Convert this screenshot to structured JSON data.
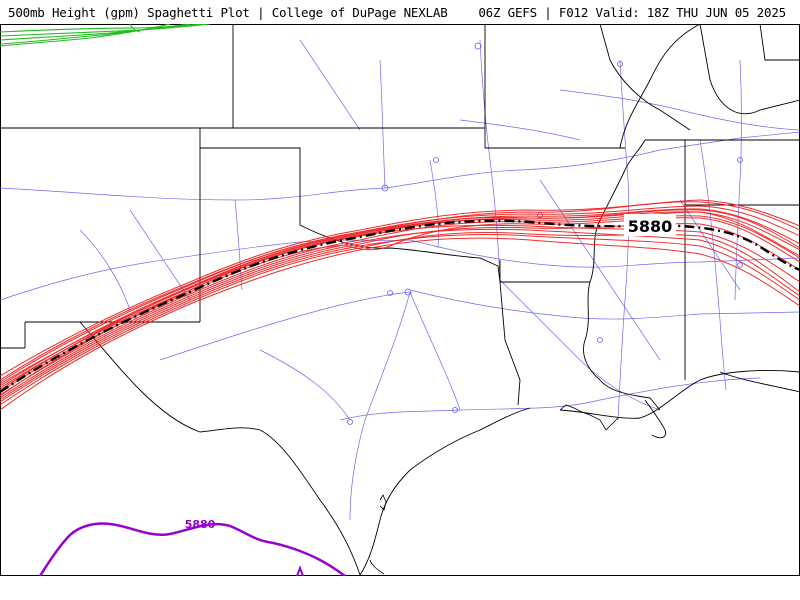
{
  "header": {
    "title": "500mb Height (gpm) Spaghetti Plot | College of DuPage NEXLAB",
    "run_info": "06Z GEFS | F012 Valid: 18Z THU JUN 05 2025"
  },
  "map": {
    "contour_labels": {
      "mean": "5880",
      "south": "5880"
    },
    "colors": {
      "members": "#ee2222",
      "mean": "#000000",
      "north_members": "#22bb22",
      "south_contour": "#9900cc",
      "roads": "#5c5cee",
      "boundaries": "#000000"
    }
  }
}
